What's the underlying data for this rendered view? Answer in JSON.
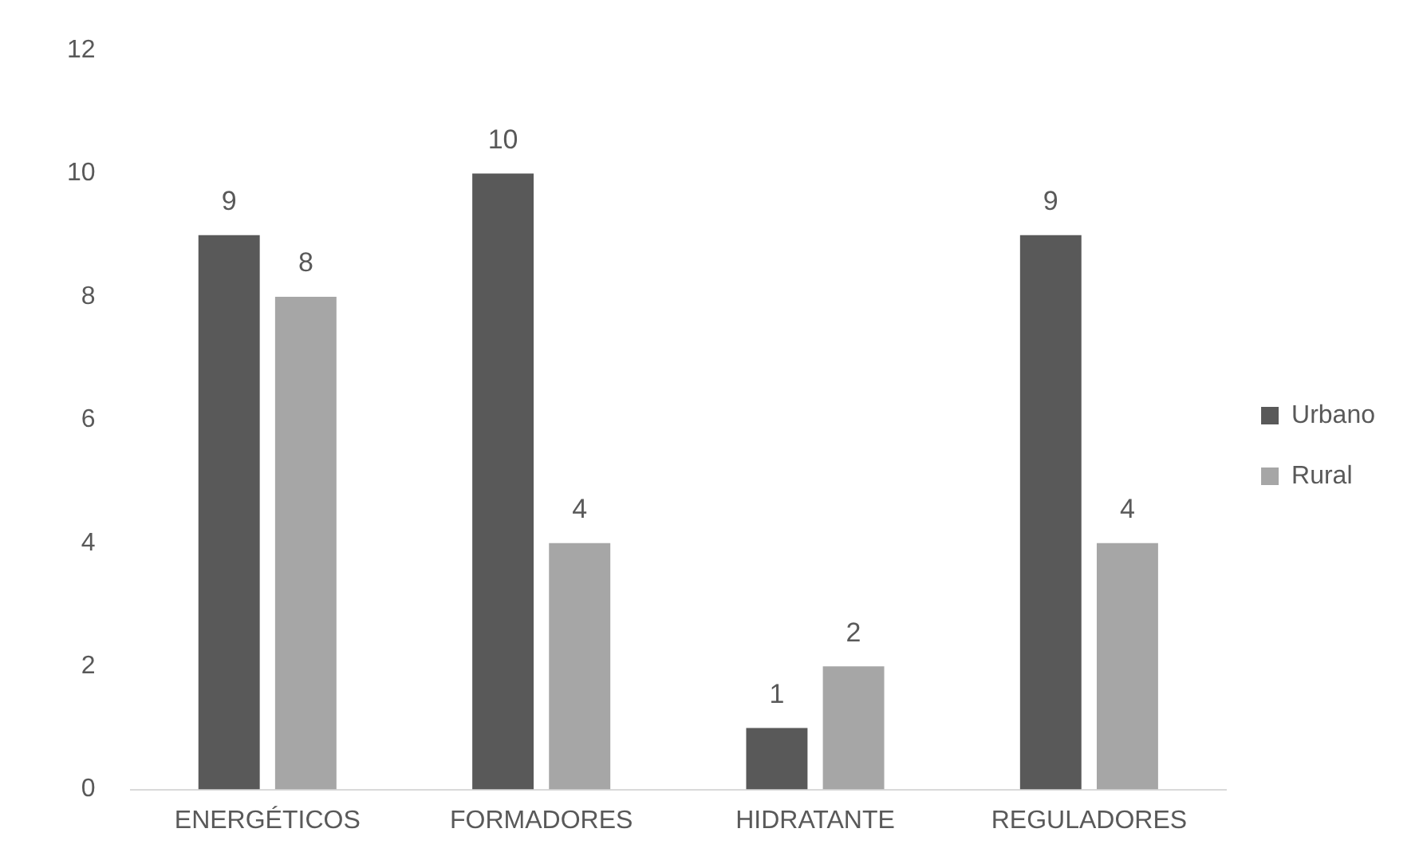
{
  "chart_data": {
    "type": "bar",
    "categories": [
      "ENERGÉTICOS",
      "FORMADORES",
      "HIDRATANTE",
      "REGULADORES"
    ],
    "series": [
      {
        "name": "Urbano",
        "color": "#595959",
        "values": [
          9,
          10,
          1,
          9
        ]
      },
      {
        "name": "Rural",
        "color": "#a6a6a6",
        "values": [
          8,
          4,
          2,
          4
        ]
      }
    ],
    "ylim": [
      0,
      12
    ],
    "yticks": [
      0,
      2,
      4,
      6,
      8,
      10,
      12
    ],
    "legend": "right",
    "data_labels": true
  }
}
